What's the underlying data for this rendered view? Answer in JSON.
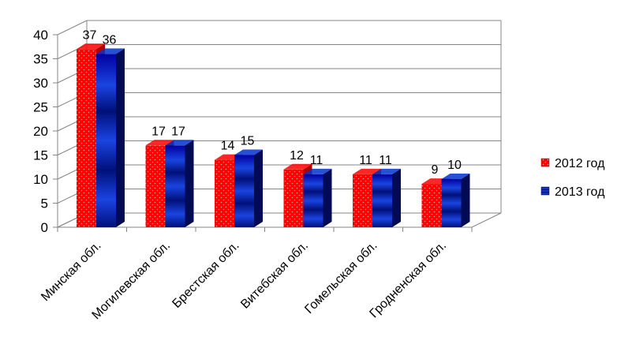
{
  "chart_data": {
    "type": "bar",
    "categories": [
      "Минская обл.",
      "Могилевская обл.",
      "Брестская обл.",
      "Витебская обл.",
      "Гомельская обл.",
      "Гродненская обл."
    ],
    "series": [
      {
        "name": "2012 год",
        "values": [
          37,
          17,
          14,
          12,
          11,
          9
        ],
        "color": "#ff0000",
        "side_color": "#b00000"
      },
      {
        "name": "2013 год",
        "values": [
          36,
          17,
          15,
          11,
          11,
          10
        ],
        "color": "#0033cc",
        "side_color": "#000a55"
      }
    ],
    "ylim": [
      0,
      40
    ],
    "yticks": [
      "0",
      "5",
      "10",
      "15",
      "20",
      "25",
      "30",
      "35",
      "40"
    ],
    "grid": true,
    "legend_position": "right",
    "three_d": true
  }
}
